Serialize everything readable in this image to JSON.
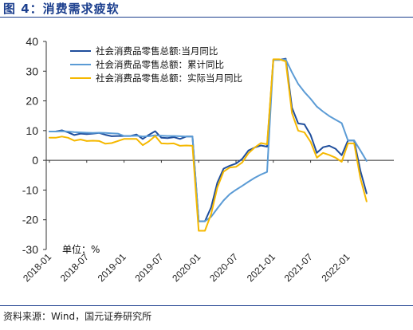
{
  "figure": {
    "title": "图 4：消费需求疲软",
    "source": "资料来源：Wind，国元证券研究所"
  },
  "chart_data": {
    "type": "line",
    "unit_label": "单位：%",
    "ylim": [
      -30,
      40
    ],
    "y_ticks": [
      -30,
      -20,
      -10,
      0,
      10,
      20,
      30,
      40
    ],
    "x_ticks": [
      "2018-01",
      "2018-07",
      "2019-01",
      "2019-07",
      "2020-01",
      "2020-07",
      "2021-01",
      "2021-07",
      "2022-01"
    ],
    "grid": false,
    "legend_position": "top-left",
    "x": [
      "2018-01",
      "2018-02",
      "2018-03",
      "2018-04",
      "2018-05",
      "2018-06",
      "2018-07",
      "2018-08",
      "2018-09",
      "2018-10",
      "2018-11",
      "2018-12",
      "2019-01",
      "2019-02",
      "2019-03",
      "2019-04",
      "2019-05",
      "2019-06",
      "2019-07",
      "2019-08",
      "2019-09",
      "2019-10",
      "2019-11",
      "2019-12",
      "2020-01",
      "2020-02",
      "2020-03",
      "2020-04",
      "2020-05",
      "2020-06",
      "2020-07",
      "2020-08",
      "2020-09",
      "2020-10",
      "2020-11",
      "2020-12",
      "2021-01",
      "2021-02",
      "2021-03",
      "2021-04",
      "2021-05",
      "2021-06",
      "2021-07",
      "2021-08",
      "2021-09",
      "2021-10",
      "2021-11",
      "2021-12",
      "2022-01",
      "2022-02",
      "2022-03",
      "2022-04"
    ],
    "series": [
      {
        "name": "社会消费品零售总额:当月同比",
        "color": "#1f4e9c",
        "values": [
          9.7,
          9.7,
          10.1,
          9.4,
          8.5,
          9.0,
          8.8,
          9.0,
          9.2,
          8.6,
          8.1,
          8.2,
          8.2,
          8.2,
          8.7,
          7.2,
          8.6,
          9.8,
          7.6,
          7.5,
          7.8,
          7.2,
          8.0,
          8.0,
          -20.5,
          -20.5,
          -15.8,
          -7.5,
          -2.8,
          -1.8,
          -1.1,
          0.5,
          3.3,
          4.3,
          5.0,
          4.6,
          33.8,
          33.8,
          34.2,
          17.7,
          12.4,
          12.1,
          8.5,
          2.5,
          4.4,
          4.9,
          3.9,
          1.7,
          6.7,
          6.7,
          -3.5,
          -11.1
        ]
      },
      {
        "name": "社会消费品零售总额：累计同比",
        "color": "#5b9bd5",
        "values": [
          9.7,
          9.7,
          9.8,
          9.7,
          9.5,
          9.4,
          9.3,
          9.2,
          9.3,
          9.2,
          9.1,
          9.0,
          8.2,
          8.2,
          8.3,
          8.0,
          8.1,
          8.4,
          8.3,
          8.2,
          8.2,
          8.1,
          8.0,
          8.0,
          -20.5,
          -20.5,
          -19.0,
          -16.2,
          -13.5,
          -11.4,
          -9.9,
          -8.6,
          -7.2,
          -5.9,
          -4.8,
          -3.9,
          33.8,
          33.8,
          33.9,
          29.6,
          25.7,
          23.0,
          20.7,
          18.1,
          16.4,
          14.9,
          13.7,
          12.5,
          6.7,
          6.7,
          3.3,
          -0.2
        ]
      },
      {
        "name": "社会消费品零售总额：实际当月同比",
        "color": "#f5b800",
        "values": [
          7.6,
          7.6,
          8.0,
          7.6,
          6.6,
          7.0,
          6.5,
          6.6,
          6.5,
          5.6,
          5.8,
          6.5,
          7.2,
          7.2,
          7.2,
          5.1,
          6.4,
          8.2,
          5.7,
          5.6,
          5.7,
          4.9,
          5.0,
          4.9,
          -23.7,
          -23.7,
          -18.1,
          -9.1,
          -3.8,
          -2.4,
          -2.2,
          -0.7,
          2.4,
          4.3,
          5.8,
          5.4,
          34.0,
          34.0,
          33.3,
          15.9,
          10.0,
          9.4,
          6.2,
          0.9,
          2.5,
          1.8,
          0.9,
          -0.5,
          5.7,
          5.7,
          -6.0,
          -13.8
        ]
      }
    ]
  }
}
